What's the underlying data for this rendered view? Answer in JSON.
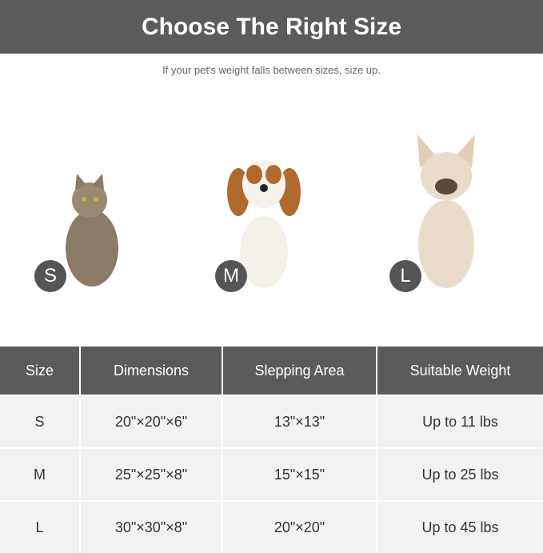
{
  "header": {
    "title": "Choose The Right Size"
  },
  "subtitle": "If your pet's weight falls between sizes, size up.",
  "pets": [
    {
      "badge": "S",
      "animal": "cat"
    },
    {
      "badge": "M",
      "animal": "spaniel"
    },
    {
      "badge": "L",
      "animal": "french-bulldog"
    }
  ],
  "table": {
    "headers": [
      "Size",
      "Dimensions",
      "Slepping Area",
      "Suitable Weight"
    ],
    "rows": [
      [
        "S",
        "20\"×20\"×6\"",
        "13\"×13\"",
        "Up to 11 lbs"
      ],
      [
        "M",
        "25\"×25\"×8\"",
        "15\"×15\"",
        "Up to 25 lbs"
      ],
      [
        "L",
        "30\"×30\"×8\"",
        "20\"×20\"",
        "Up to 45 lbs"
      ]
    ]
  },
  "colors": {
    "bar": "#5b5b5b",
    "row": "#f2f2f2",
    "badge": "#555555"
  }
}
